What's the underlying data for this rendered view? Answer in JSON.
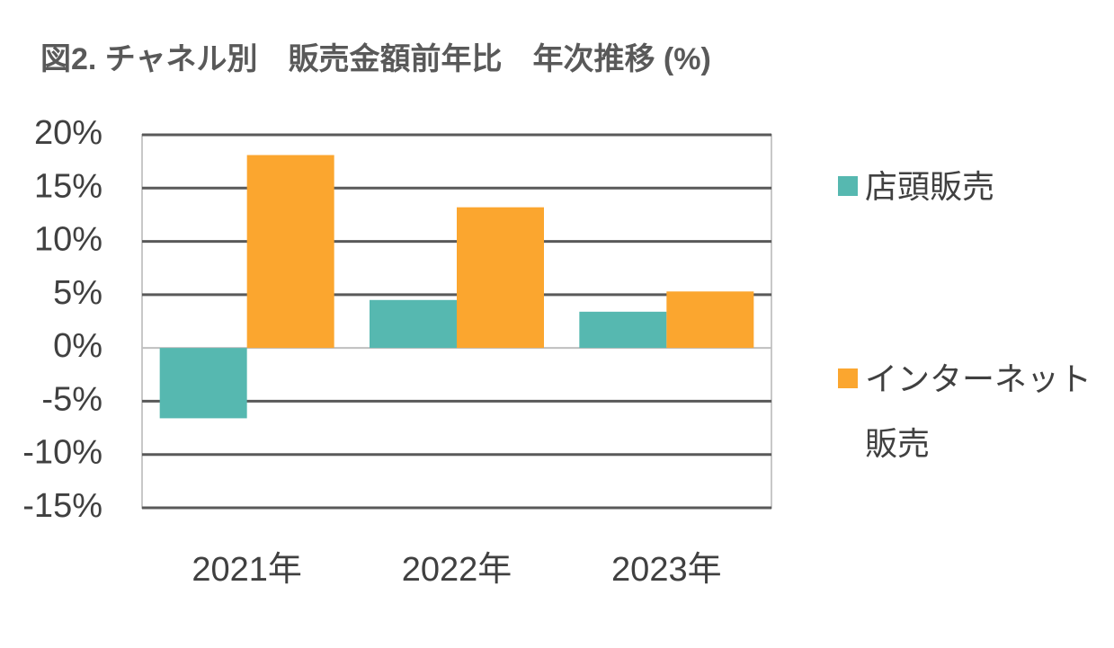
{
  "chart_data": {
    "type": "bar",
    "title": "図2. チャネル別　販売金額前年比　年次推移 (%)",
    "categories": [
      "2021年",
      "2022年",
      "2023年"
    ],
    "series": [
      {
        "name": "店頭販売",
        "color": "#56b8b0",
        "values": [
          -6.6,
          4.5,
          3.4
        ]
      },
      {
        "name": "インターネット販売",
        "color": "#fba62f",
        "values": [
          18.1,
          13.2,
          5.3
        ]
      }
    ],
    "ylim": [
      -15,
      20
    ],
    "yticks": [
      {
        "value": -15,
        "label": "-15%"
      },
      {
        "value": -10,
        "label": "-10%"
      },
      {
        "value": -5,
        "label": "-5%"
      },
      {
        "value": 0,
        "label": "0%"
      },
      {
        "value": 5,
        "label": "5%"
      },
      {
        "value": 10,
        "label": "10%"
      },
      {
        "value": 15,
        "label": "15%"
      },
      {
        "value": 20,
        "label": "20%"
      }
    ],
    "grid": true,
    "legend": "right"
  }
}
